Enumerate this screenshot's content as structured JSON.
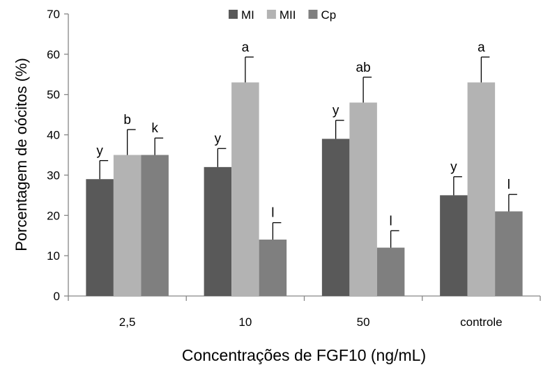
{
  "chart_data": {
    "type": "bar",
    "title": "",
    "xlabel": "Concentrações de FGF10 (ng/mL)",
    "ylabel": "Porcentagem de oócitos (%)",
    "ylim": [
      0,
      70
    ],
    "yticks": [
      0,
      10,
      20,
      30,
      40,
      50,
      60,
      70
    ],
    "grid": false,
    "legend_position": "top-center",
    "categories": [
      "2,5",
      "10",
      "50",
      "controle"
    ],
    "series": [
      {
        "name": "MI",
        "color": "#595959",
        "values": [
          29,
          32,
          39,
          25
        ],
        "errors": [
          4.6,
          4.6,
          4.6,
          4.6
        ],
        "labels": [
          "y",
          "y",
          "y",
          "y"
        ]
      },
      {
        "name": "MII",
        "color": "#b3b3b3",
        "values": [
          35,
          53,
          48,
          53
        ],
        "errors": [
          6.3,
          6.3,
          6.3,
          6.3
        ],
        "labels": [
          "b",
          "a",
          "ab",
          "a"
        ]
      },
      {
        "name": "Cp",
        "color": "#7f7f7f",
        "values": [
          35,
          14,
          12,
          21
        ],
        "errors": [
          4.2,
          4.2,
          4.2,
          4.2
        ],
        "labels": [
          "k",
          "l",
          "l",
          "l"
        ]
      }
    ]
  }
}
